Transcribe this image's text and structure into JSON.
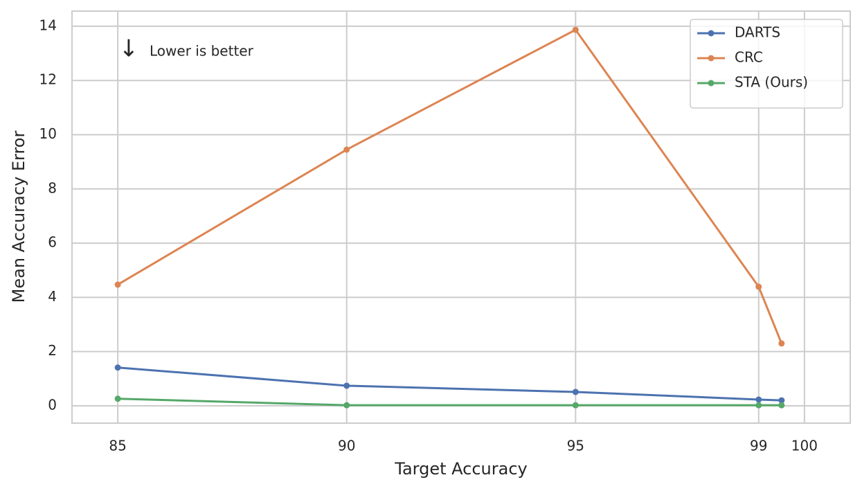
{
  "chart_data": {
    "type": "line",
    "x_label": "Target Accuracy",
    "y_label": "Mean Accuracy Error",
    "annotations": [
      "↓",
      "Lower is better"
    ],
    "x": [
      85,
      90,
      95,
      99,
      99.5
    ],
    "series": [
      {
        "name": "DARTS",
        "color": "#4c72b0",
        "values": [
          1.41,
          0.74,
          0.51,
          0.23,
          0.2
        ]
      },
      {
        "name": "CRC",
        "color": "#dd8452",
        "values": [
          4.47,
          9.45,
          13.87,
          4.39,
          2.3
        ]
      },
      {
        "name": "STA (Ours)",
        "color": "#55a868",
        "values": [
          0.26,
          0.02,
          0.02,
          0.02,
          0.02
        ]
      }
    ],
    "xlim": [
      84,
      101
    ],
    "xticks": [
      85,
      90,
      95,
      99,
      100
    ],
    "ylim": [
      -0.64,
      14.56
    ],
    "yticks": [
      0,
      2,
      4,
      6,
      8,
      10,
      12,
      14
    ],
    "grid": true,
    "legend": "upper right"
  }
}
